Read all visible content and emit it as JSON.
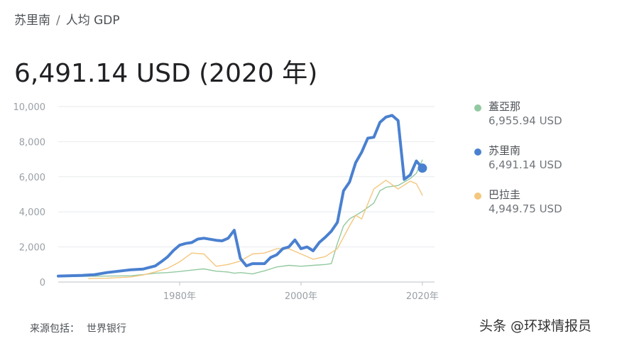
{
  "breadcrumb": {
    "country": "苏里南",
    "separator": "/",
    "metric": "人均 GDP"
  },
  "headline": "6,491.14 USD (2020 年)",
  "source": {
    "label": "来源包括：",
    "provider": "世界银行"
  },
  "watermark": "头条 @环球情报员",
  "legend": [
    {
      "name": "蓋亞那",
      "value": "6,955.94 USD",
      "color": "#93c9a0"
    },
    {
      "name": "苏里南",
      "value": "6,491.14 USD",
      "color": "#4a80d0"
    },
    {
      "name": "巴拉圭",
      "value": "4,949.75 USD",
      "color": "#f4c77f"
    }
  ],
  "chart_data": {
    "type": "line",
    "xlim": [
      1960,
      2022
    ],
    "ylim": [
      0,
      10000
    ],
    "y_ticks": [
      0,
      2000,
      4000,
      6000,
      8000,
      10000
    ],
    "y_tick_labels": [
      "0",
      "2,000",
      "4,000",
      "6,000",
      "8,000",
      "10,000"
    ],
    "x_ticks": [
      1980,
      2000,
      2020
    ],
    "x_tick_labels": [
      "1980年",
      "2000年",
      "2020年"
    ],
    "grid": true,
    "series": [
      {
        "name": "蓋亞那",
        "color": "#93c9a0",
        "x": [
          1960,
          1962,
          1964,
          1966,
          1968,
          1970,
          1972,
          1974,
          1976,
          1978,
          1980,
          1982,
          1984,
          1986,
          1988,
          1989,
          1990,
          1991,
          1992,
          1994,
          1996,
          1998,
          2000,
          2002,
          2004,
          2005,
          2006,
          2007,
          2008,
          2010,
          2012,
          2013,
          2014,
          2016,
          2018,
          2019,
          2020
        ],
        "values": [
          300,
          310,
          320,
          330,
          340,
          350,
          360,
          420,
          500,
          540,
          600,
          680,
          750,
          620,
          570,
          500,
          540,
          500,
          460,
          640,
          860,
          950,
          900,
          950,
          1000,
          1050,
          2200,
          3200,
          3600,
          4000,
          4500,
          5200,
          5400,
          5500,
          5900,
          6200,
          6955.94
        ]
      },
      {
        "name": "苏里南",
        "color": "#4a80d0",
        "x": [
          1960,
          1962,
          1964,
          1966,
          1968,
          1970,
          1972,
          1974,
          1976,
          1977,
          1978,
          1979,
          1980,
          1981,
          1982,
          1983,
          1984,
          1986,
          1987,
          1988,
          1989,
          1990,
          1991,
          1992,
          1994,
          1995,
          1996,
          1997,
          1998,
          1999,
          2000,
          2001,
          2002,
          2003,
          2004,
          2005,
          2006,
          2007,
          2008,
          2009,
          2010,
          2011,
          2012,
          2013,
          2014,
          2015,
          2016,
          2017,
          2018,
          2019,
          2020
        ],
        "values": [
          340,
          360,
          380,
          420,
          540,
          620,
          700,
          740,
          920,
          1160,
          1430,
          1800,
          2100,
          2200,
          2250,
          2450,
          2500,
          2380,
          2350,
          2500,
          2950,
          1350,
          920,
          1050,
          1050,
          1400,
          1550,
          1900,
          2000,
          2400,
          1900,
          2000,
          1780,
          2250,
          2550,
          2900,
          3400,
          5200,
          5700,
          6800,
          7400,
          8200,
          8250,
          9100,
          9400,
          9500,
          9200,
          5850,
          6100,
          6900,
          6491.14
        ]
      },
      {
        "name": "巴拉圭",
        "color": "#f4c77f",
        "x": [
          1965,
          1968,
          1970,
          1972,
          1974,
          1976,
          1978,
          1980,
          1982,
          1984,
          1986,
          1988,
          1990,
          1992,
          1994,
          1996,
          1998,
          2000,
          2002,
          2004,
          2006,
          2008,
          2009,
          2010,
          2012,
          2014,
          2016,
          2018,
          2019,
          2020
        ],
        "values": [
          200,
          220,
          250,
          290,
          400,
          580,
          780,
          1150,
          1650,
          1600,
          900,
          1000,
          1200,
          1600,
          1650,
          1900,
          1900,
          1600,
          1300,
          1450,
          1900,
          3200,
          3800,
          3600,
          5300,
          5800,
          5300,
          5750,
          5600,
          4949.75
        ]
      }
    ],
    "highlight": {
      "series": "苏里南",
      "x": 2020,
      "value": 6491.14
    }
  }
}
